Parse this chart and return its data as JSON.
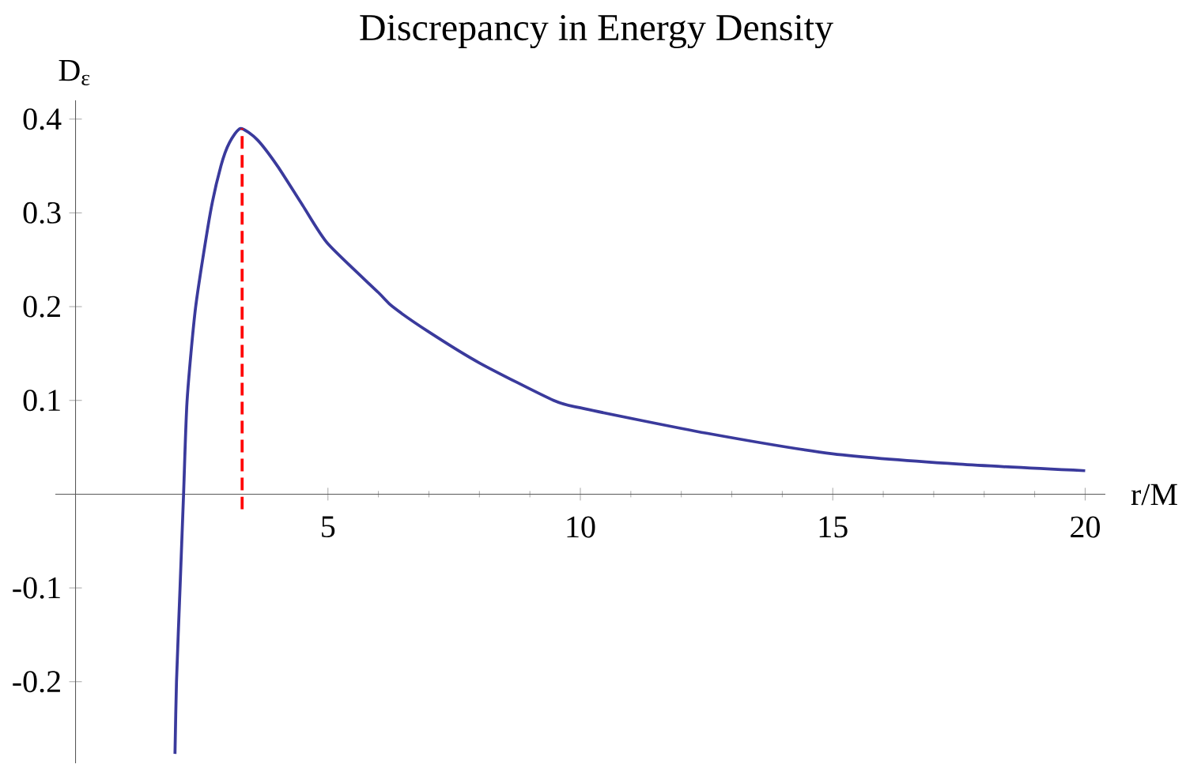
{
  "chart_data": {
    "type": "line",
    "title": "Discrepancy  in Energy Density",
    "xlabel": "r/M",
    "ylabel": "D$_{ε}$",
    "xlim": [
      -0.4,
      20.4
    ],
    "ylim": [
      -0.287,
      0.42
    ],
    "xticks": [
      5,
      10,
      15,
      20
    ],
    "yticks": [
      -0.2,
      -0.1,
      0.1,
      0.2,
      0.3,
      0.4
    ],
    "series": [
      {
        "color": "#3a3a9c",
        "line_style": "solid",
        "x": [
          1.97,
          2.0,
          2.07,
          2.14,
          2.21,
          2.38,
          2.67,
          2.88,
          3.05,
          3.27,
          3.6,
          4.0,
          4.5,
          5.0,
          6.0,
          6.28,
          7.0,
          8.0,
          9.47,
          10.09,
          12.5,
          15.0,
          17.5,
          20.0
        ],
        "values": [
          -0.277,
          -0.2,
          -0.1,
          0.0,
          0.1,
          0.2,
          0.3,
          0.35,
          0.375,
          0.39,
          0.378,
          0.35,
          0.308,
          0.267,
          0.215,
          0.2,
          0.173,
          0.14,
          0.1,
          0.091,
          0.065,
          0.043,
          0.032,
          0.025
        ]
      },
      {
        "color": "#ff0000",
        "line_style": "dashed",
        "x": [
          3.3,
          3.3
        ],
        "values": [
          -0.016,
          0.39
        ]
      }
    ]
  }
}
